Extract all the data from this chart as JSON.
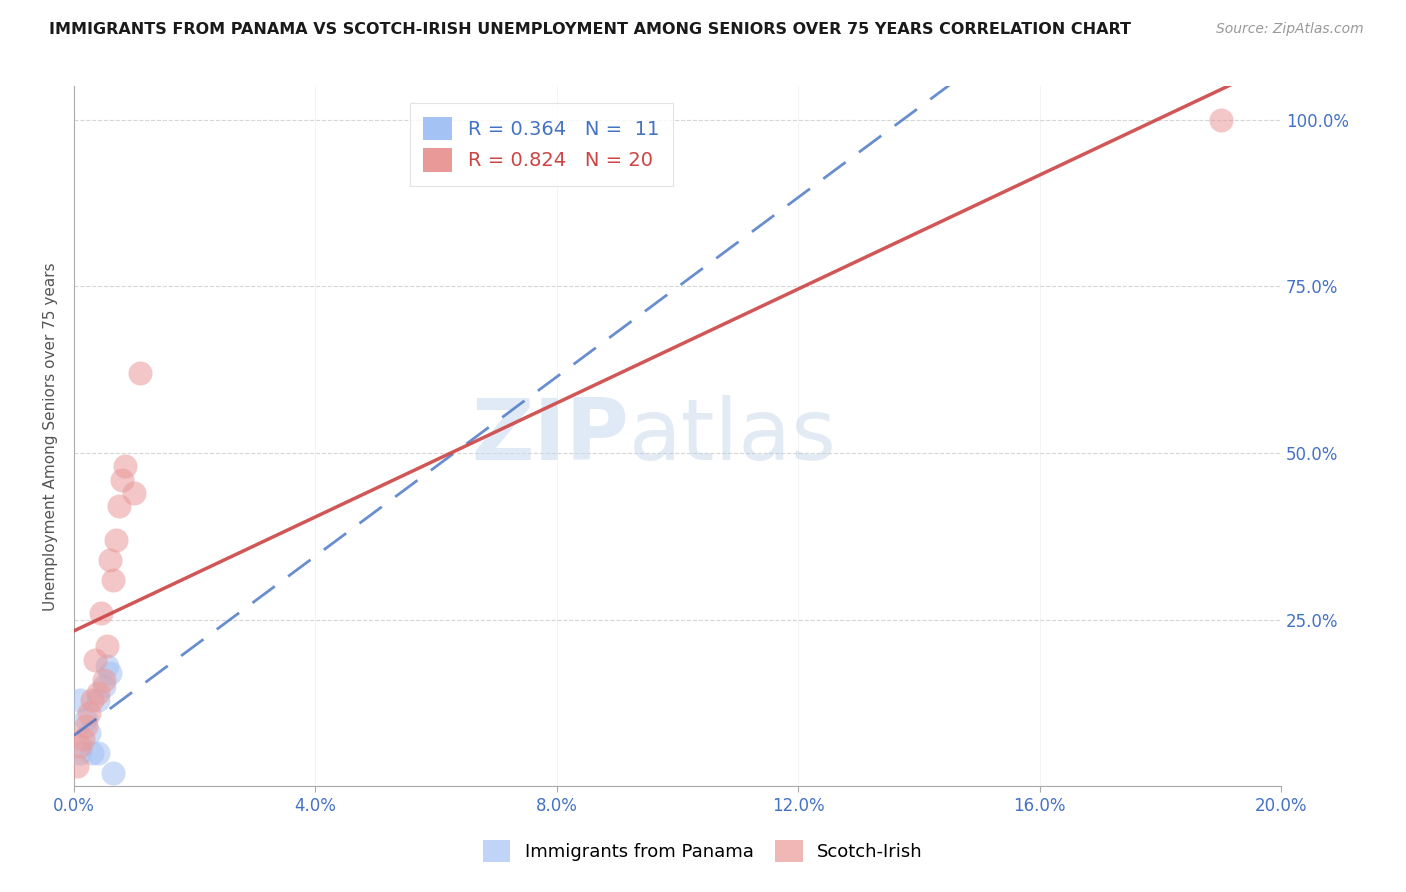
{
  "title": "IMMIGRANTS FROM PANAMA VS SCOTCH-IRISH UNEMPLOYMENT AMONG SENIORS OVER 75 YEARS CORRELATION CHART",
  "source": "Source: ZipAtlas.com",
  "ylabel": "Unemployment Among Seniors over 75 years",
  "legend_panama": "R = 0.364   N =  11",
  "legend_scotch": "R = 0.824   N = 20",
  "panama_color": "#a4c2f4",
  "scotch_color": "#ea9999",
  "panama_line_color": "#4472c4",
  "scotch_line_color": "#cc4444",
  "watermark_zip": "ZIP",
  "watermark_atlas": "atlas",
  "panama_points_pct": [
    [
      0.1,
      13.0
    ],
    [
      0.1,
      5.0
    ],
    [
      0.2,
      10.0
    ],
    [
      0.25,
      8.0
    ],
    [
      0.3,
      5.0
    ],
    [
      0.4,
      5.0
    ],
    [
      0.4,
      13.0
    ],
    [
      0.5,
      15.0
    ],
    [
      0.55,
      18.0
    ],
    [
      0.6,
      17.0
    ],
    [
      0.65,
      2.0
    ]
  ],
  "scotch_points_pct": [
    [
      0.05,
      3.0
    ],
    [
      0.1,
      6.0
    ],
    [
      0.15,
      7.0
    ],
    [
      0.2,
      9.0
    ],
    [
      0.25,
      11.0
    ],
    [
      0.3,
      13.0
    ],
    [
      0.35,
      19.0
    ],
    [
      0.4,
      14.0
    ],
    [
      0.45,
      26.0
    ],
    [
      0.5,
      16.0
    ],
    [
      0.55,
      21.0
    ],
    [
      0.6,
      34.0
    ],
    [
      0.65,
      31.0
    ],
    [
      0.7,
      37.0
    ],
    [
      0.75,
      42.0
    ],
    [
      0.8,
      46.0
    ],
    [
      0.85,
      48.0
    ],
    [
      1.0,
      44.0
    ],
    [
      1.1,
      62.0
    ],
    [
      19.0,
      100.0
    ]
  ],
  "xlim_pct": [
    0.0,
    20.0
  ],
  "ylim_pct": [
    0.0,
    105.0
  ],
  "xticks_pct": [
    0.0,
    4.0,
    8.0,
    12.0,
    16.0,
    20.0
  ],
  "ytick_positions_pct": [
    0.0,
    25.0,
    50.0,
    75.0,
    100.0
  ],
  "right_ytick_labels": [
    "",
    "25.0%",
    "50.0%",
    "75.0%",
    "100.0%"
  ]
}
